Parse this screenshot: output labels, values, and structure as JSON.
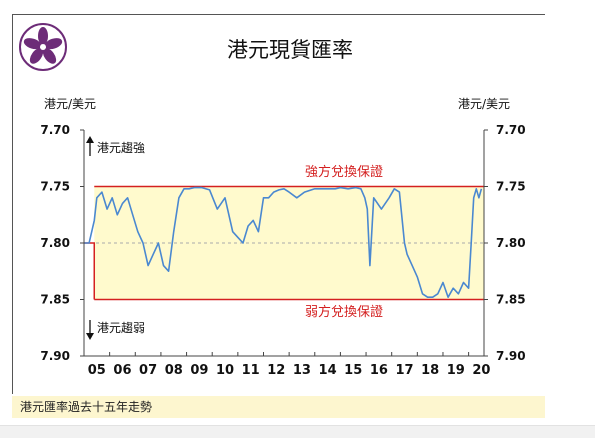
{
  "page": {
    "title": "港元現貨匯率",
    "caption": "港元匯率過去十五年走勢"
  },
  "colors": {
    "band": "#fffacd",
    "limit_line": "#d42020",
    "series": "#4a88d0",
    "logo": "#6d2c78"
  },
  "icons": {
    "logo": "bauhinia-flower-icon",
    "arrow_up": "up-arrow-icon",
    "arrow_down": "down-arrow-icon"
  },
  "chart_data": {
    "type": "line",
    "ylabel_left": "港元/美元",
    "ylabel_right": "港元/美元",
    "y_inverted": true,
    "ylim": [
      7.7,
      7.9
    ],
    "yticks": [
      "7.70",
      "7.75",
      "7.80",
      "7.85",
      "7.90"
    ],
    "yticks_right": [
      "7.70",
      "7.75",
      "7.80",
      "7.85",
      "7.90"
    ],
    "xlim": [
      2005.0,
      2020.6
    ],
    "xticks": [
      "05",
      "06",
      "07",
      "08",
      "09",
      "10",
      "11",
      "12",
      "13",
      "14",
      "15",
      "16",
      "17",
      "18",
      "19",
      "20"
    ],
    "grid": false,
    "strong_side": {
      "label": "強方兌換保證",
      "value": 7.75,
      "from": 2005.4,
      "to": 2020.6
    },
    "weak_side": {
      "label": "弱方兌換保證",
      "value": 7.85,
      "from": 2005.4,
      "to": 2020.6
    },
    "midline": {
      "value": 7.8
    },
    "pre_guarantee_line": {
      "x": [
        2005.0,
        2005.4,
        2005.4
      ],
      "y": [
        7.8,
        7.8,
        7.85
      ]
    },
    "annotations": {
      "strong": "港元趨強",
      "weak": "港元趨弱"
    },
    "series": [
      {
        "x": [
          2005.0,
          2005.2,
          2005.4,
          2005.5,
          2005.7,
          2005.9,
          2006.1,
          2006.3,
          2006.5,
          2006.7,
          2006.9,
          2007.1,
          2007.3,
          2007.5,
          2007.7,
          2007.9,
          2008.1,
          2008.3,
          2008.5,
          2008.7,
          2008.9,
          2009.1,
          2009.3,
          2009.6,
          2009.9,
          2010.2,
          2010.5,
          2010.8,
          2011.0,
          2011.2,
          2011.4,
          2011.6,
          2011.8,
          2012.0,
          2012.2,
          2012.4,
          2012.6,
          2012.8,
          2013.0,
          2013.3,
          2013.6,
          2014.0,
          2014.4,
          2014.8,
          2015.0,
          2015.3,
          2015.6,
          2015.8,
          2015.95,
          2016.05,
          2016.15,
          2016.3,
          2016.6,
          2016.9,
          2017.1,
          2017.3,
          2017.5,
          2017.6,
          2017.8,
          2018.0,
          2018.2,
          2018.4,
          2018.6,
          2018.8,
          2019.0,
          2019.2,
          2019.4,
          2019.6,
          2019.8,
          2020.0,
          2020.1,
          2020.2,
          2020.3,
          2020.4,
          2020.5
        ],
        "y": [
          7.8,
          7.8,
          7.78,
          7.76,
          7.755,
          7.77,
          7.76,
          7.775,
          7.765,
          7.76,
          7.775,
          7.79,
          7.8,
          7.82,
          7.81,
          7.8,
          7.82,
          7.825,
          7.79,
          7.76,
          7.752,
          7.752,
          7.751,
          7.751,
          7.753,
          7.77,
          7.76,
          7.79,
          7.795,
          7.8,
          7.785,
          7.78,
          7.79,
          7.76,
          7.76,
          7.755,
          7.753,
          7.752,
          7.755,
          7.76,
          7.755,
          7.752,
          7.752,
          7.752,
          7.751,
          7.752,
          7.751,
          7.752,
          7.76,
          7.77,
          7.82,
          7.76,
          7.77,
          7.76,
          7.752,
          7.755,
          7.8,
          7.81,
          7.82,
          7.83,
          7.845,
          7.848,
          7.848,
          7.845,
          7.835,
          7.848,
          7.84,
          7.845,
          7.835,
          7.84,
          7.8,
          7.76,
          7.752,
          7.76,
          7.752
        ]
      }
    ]
  }
}
